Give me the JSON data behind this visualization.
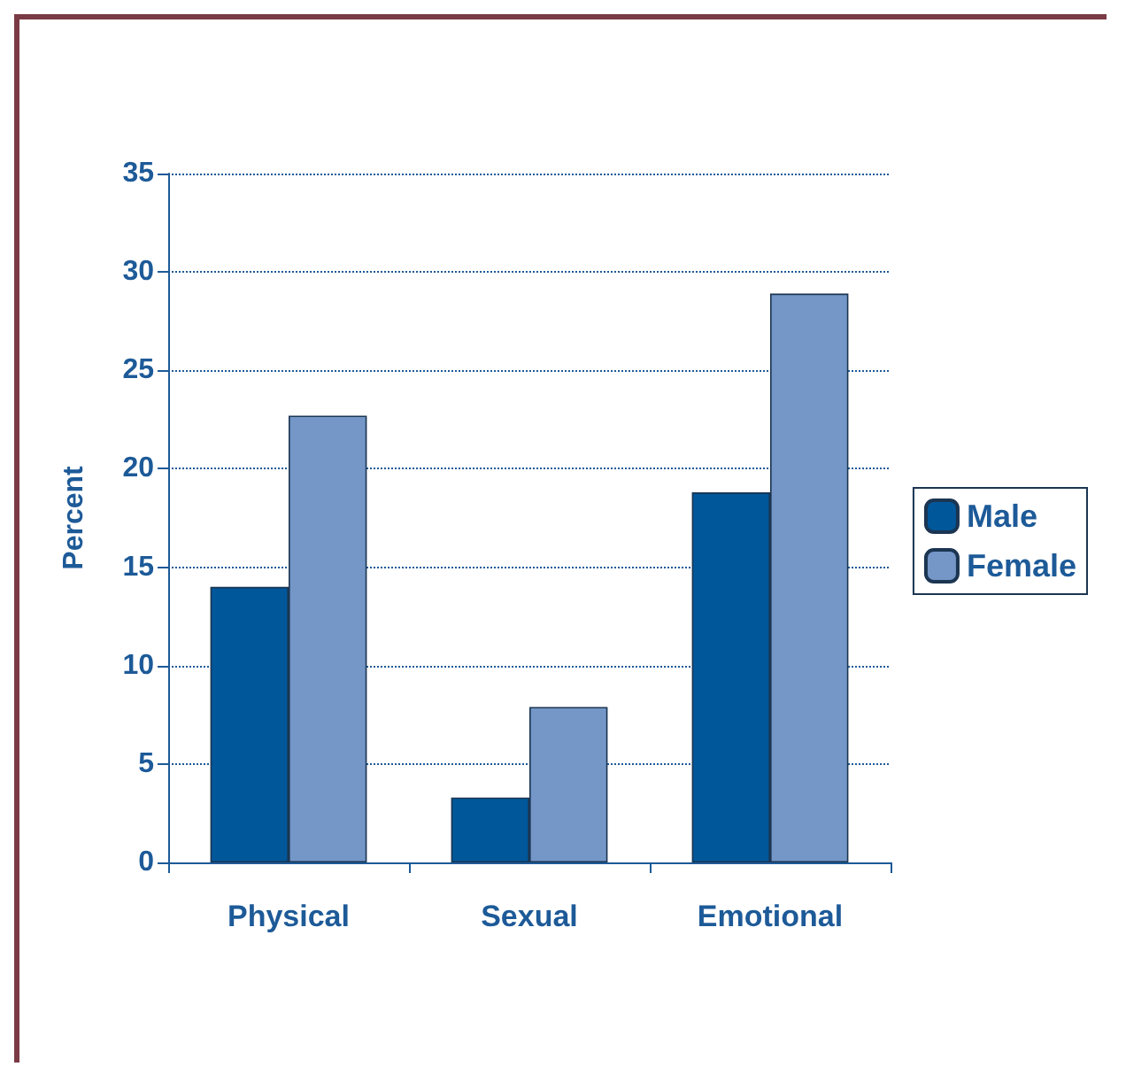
{
  "chart_data": {
    "type": "bar",
    "ylabel": "Percent",
    "categories": [
      "Physical",
      "Sexual",
      "Emotional"
    ],
    "series": [
      {
        "name": "Male",
        "color": "#00579a",
        "values": [
          14,
          3.3,
          18.8
        ]
      },
      {
        "name": "Female",
        "color": "#7497c7",
        "values": [
          22.7,
          7.9,
          28.9
        ]
      }
    ],
    "ylim": [
      0,
      35
    ],
    "yticks": [
      0,
      5,
      10,
      15,
      20,
      25,
      30,
      35
    ],
    "grid": "y",
    "legend": "right"
  }
}
